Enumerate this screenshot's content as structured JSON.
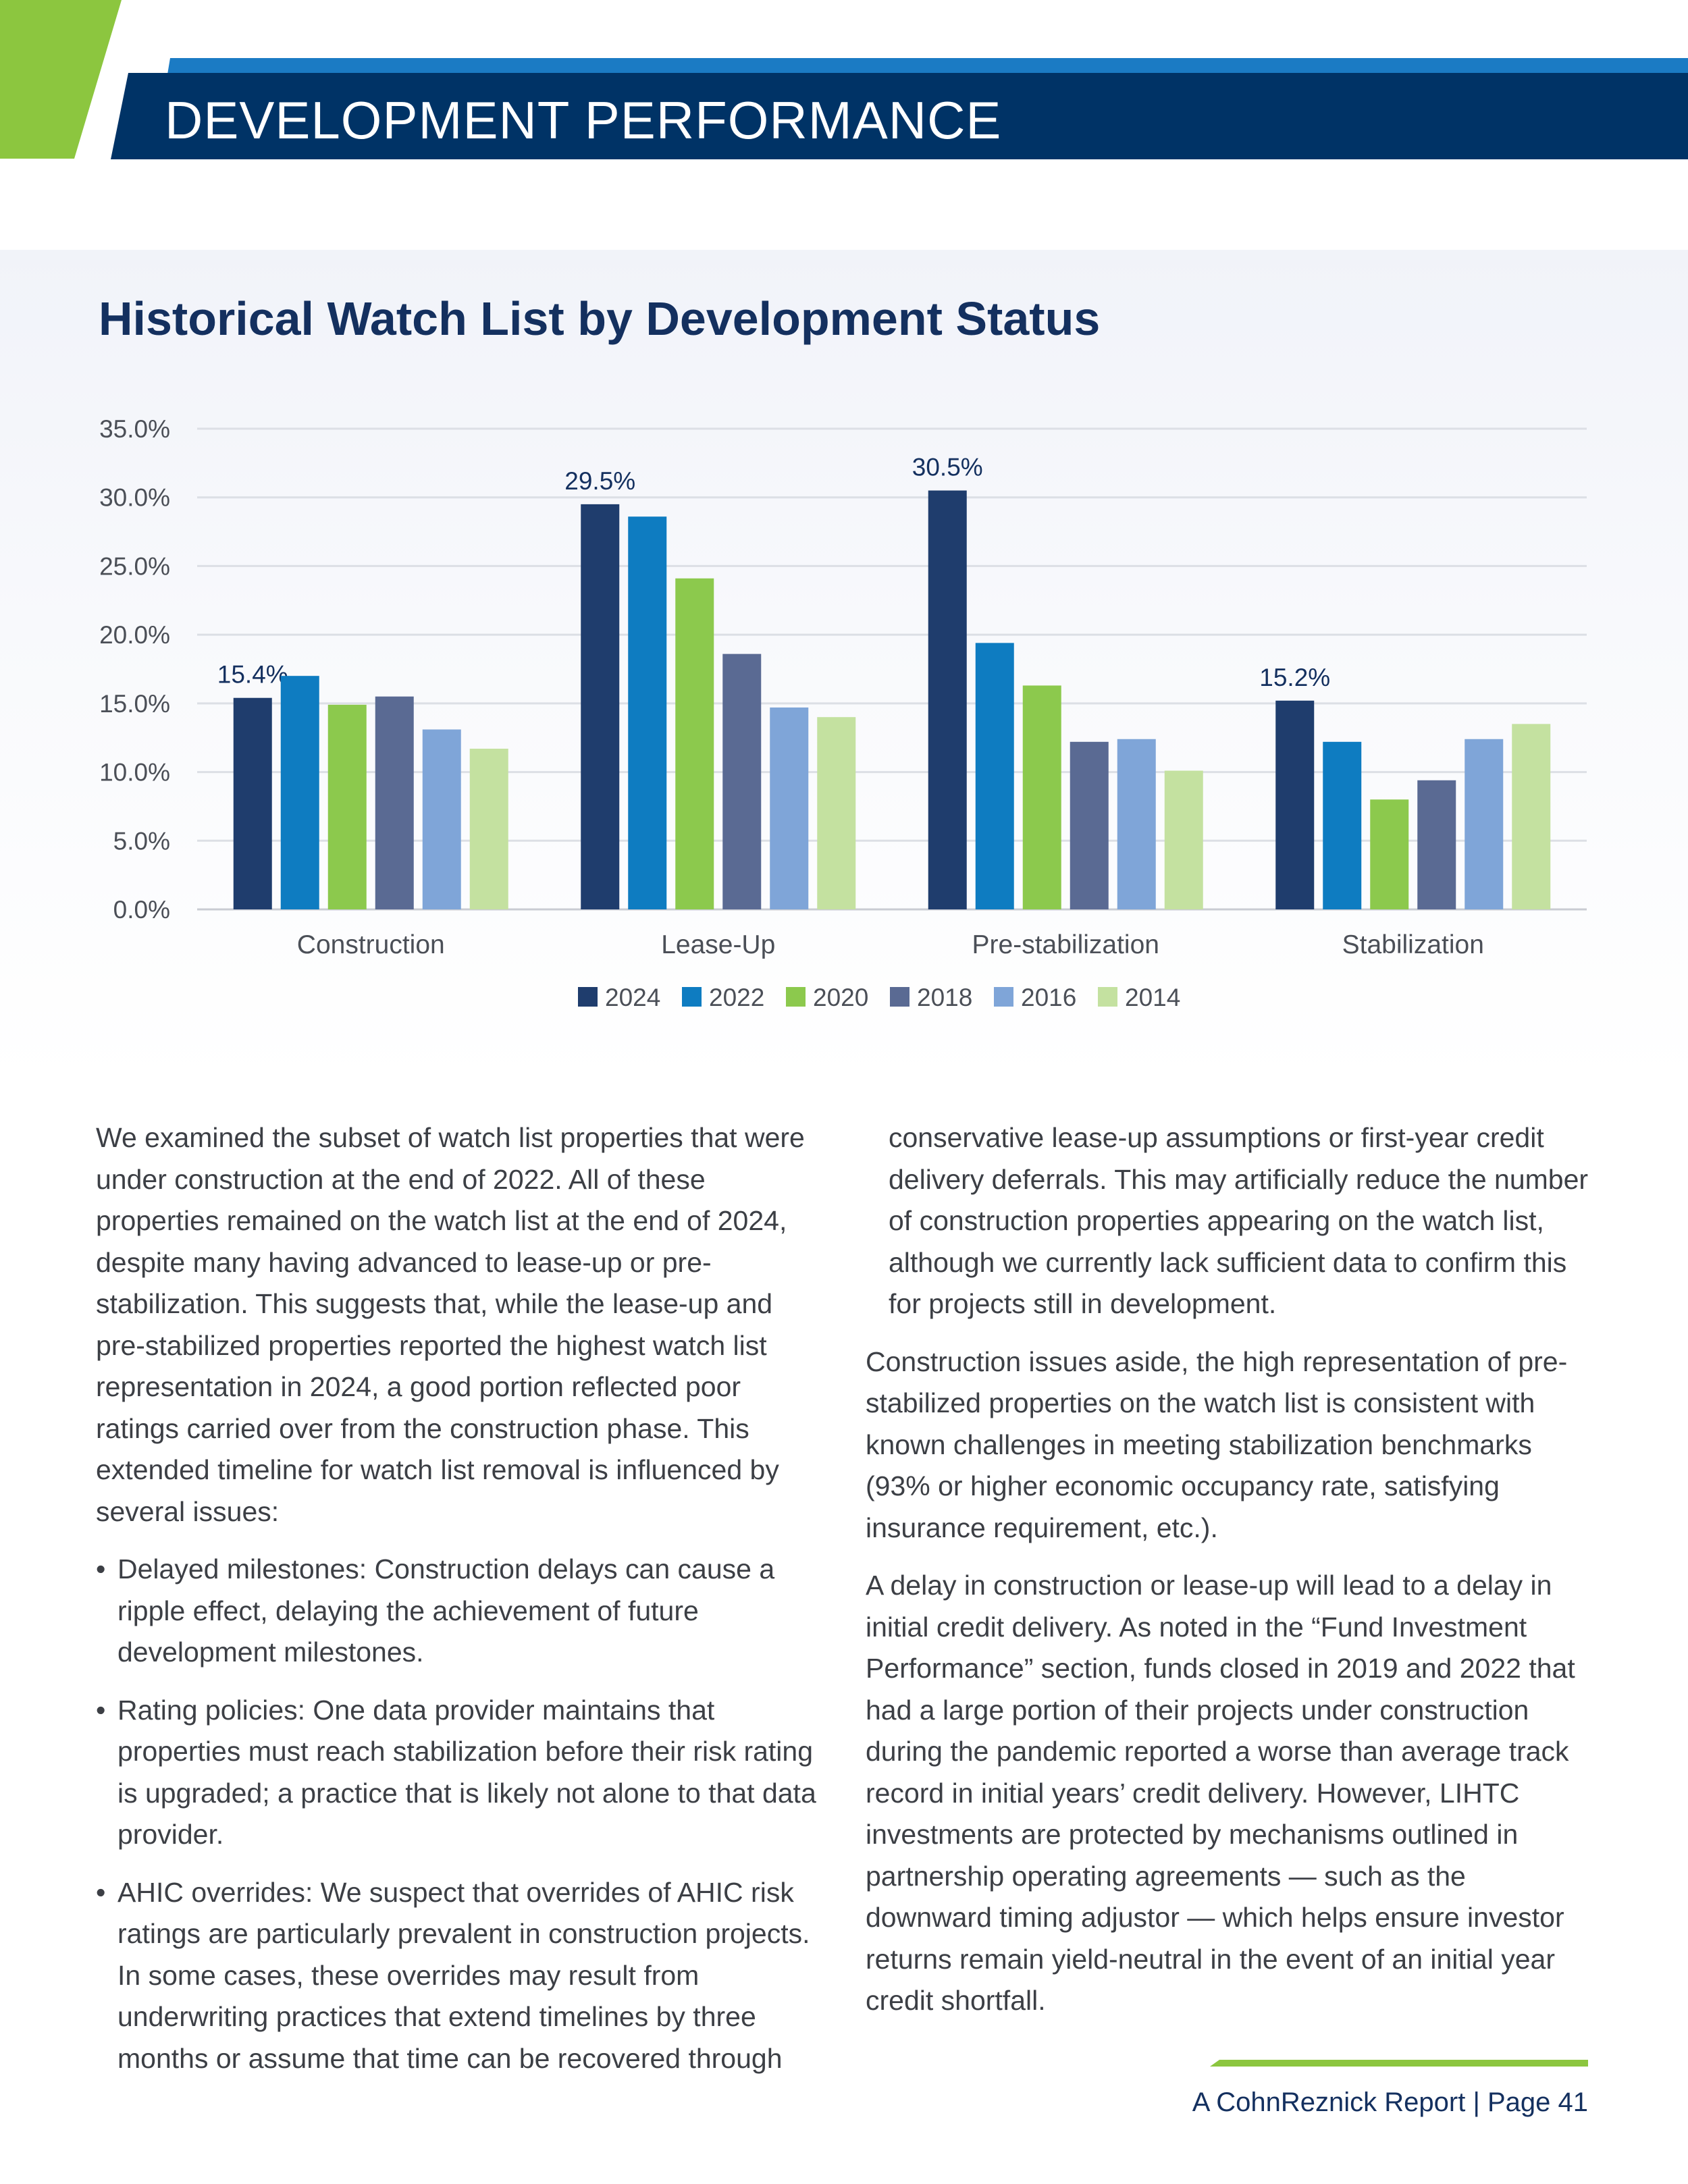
{
  "header": {
    "title": "DEVELOPMENT PERFORMANCE"
  },
  "chart_data": {
    "type": "bar",
    "title": "Historical Watch List by Development Status",
    "categories": [
      "Construction",
      "Lease-Up",
      "Pre-stabilization",
      "Stabilization"
    ],
    "series": [
      {
        "name": "2024",
        "values": [
          15.4,
          29.5,
          30.5,
          15.2
        ],
        "color": "#1f3d6d"
      },
      {
        "name": "2022",
        "values": [
          17.0,
          28.6,
          19.4,
          12.2
        ],
        "color": "#0e7cc1"
      },
      {
        "name": "2020",
        "values": [
          14.9,
          24.1,
          16.3,
          8.0
        ],
        "color": "#8cc94d"
      },
      {
        "name": "2018",
        "values": [
          15.5,
          18.6,
          12.2,
          9.4
        ],
        "color": "#5a6a93"
      },
      {
        "name": "2016",
        "values": [
          13.1,
          14.7,
          12.4,
          12.4
        ],
        "color": "#7fa5d8"
      },
      {
        "name": "2014",
        "values": [
          11.7,
          14.0,
          10.1,
          13.5
        ],
        "color": "#c4e1a0"
      }
    ],
    "data_labels": [
      "15.4%",
      "29.5%",
      "30.5%",
      "15.2%"
    ],
    "y_ticks": [
      "0.0%",
      "5.0%",
      "10.0%",
      "15.0%",
      "20.0%",
      "25.0%",
      "30.0%",
      "35.0%"
    ],
    "ylim": [
      0,
      35
    ],
    "grid": true,
    "legend_position": "bottom"
  },
  "body": {
    "left": {
      "para1": "We examined the subset of watch list properties that were under construction at the end of 2022. All of these properties remained on the watch list at the end of 2024, despite many having advanced to lease-up or pre-stabilization. This suggests that, while the lease-up and pre-stabilized properties reported the highest watch list representation in 2024, a good portion reflected poor ratings carried over from the construction phase. This extended timeline for watch list removal is influenced by several issues:",
      "bullets": [
        "Delayed milestones: Construction delays can cause a ripple effect, delaying the achievement of future development milestones.",
        "Rating policies: One data provider maintains that properties must reach stabilization before their risk rating is upgraded; a practice that is likely not alone to that data provider.",
        "AHIC overrides: We suspect that overrides of AHIC risk ratings are particularly prevalent in construction projects. In some cases, these overrides may result from underwriting practices that extend timelines by three months or assume that time can be recovered through"
      ],
      "bullet_char": "•"
    },
    "right": {
      "continued": "conservative lease-up assumptions or first-year credit delivery deferrals. This may artificially reduce the number of construction properties appearing on the watch list, although we currently lack sufficient data to confirm this for projects still in development.",
      "para2": "Construction issues aside, the high representation of pre-stabilized properties on the watch list is consistent with known challenges in meeting stabilization benchmarks (93% or higher economic occupancy rate, satisfying insurance requirement, etc.).",
      "para3": "A delay in construction or lease-up will lead to a delay in initial credit delivery. As noted in the “Fund Investment Performance” section, funds closed in 2019 and 2022 that had a large portion of their projects under construction during the pandemic reported a worse than average track record in initial years’ credit delivery. However, LIHTC investments are protected by mechanisms outlined in partnership operating agreements — such as the downward timing adjustor — which helps ensure investor returns remain yield-neutral in the event of an initial year credit shortfall."
    }
  },
  "footer": {
    "text": "A CohnReznick Report  |  Page 41"
  }
}
